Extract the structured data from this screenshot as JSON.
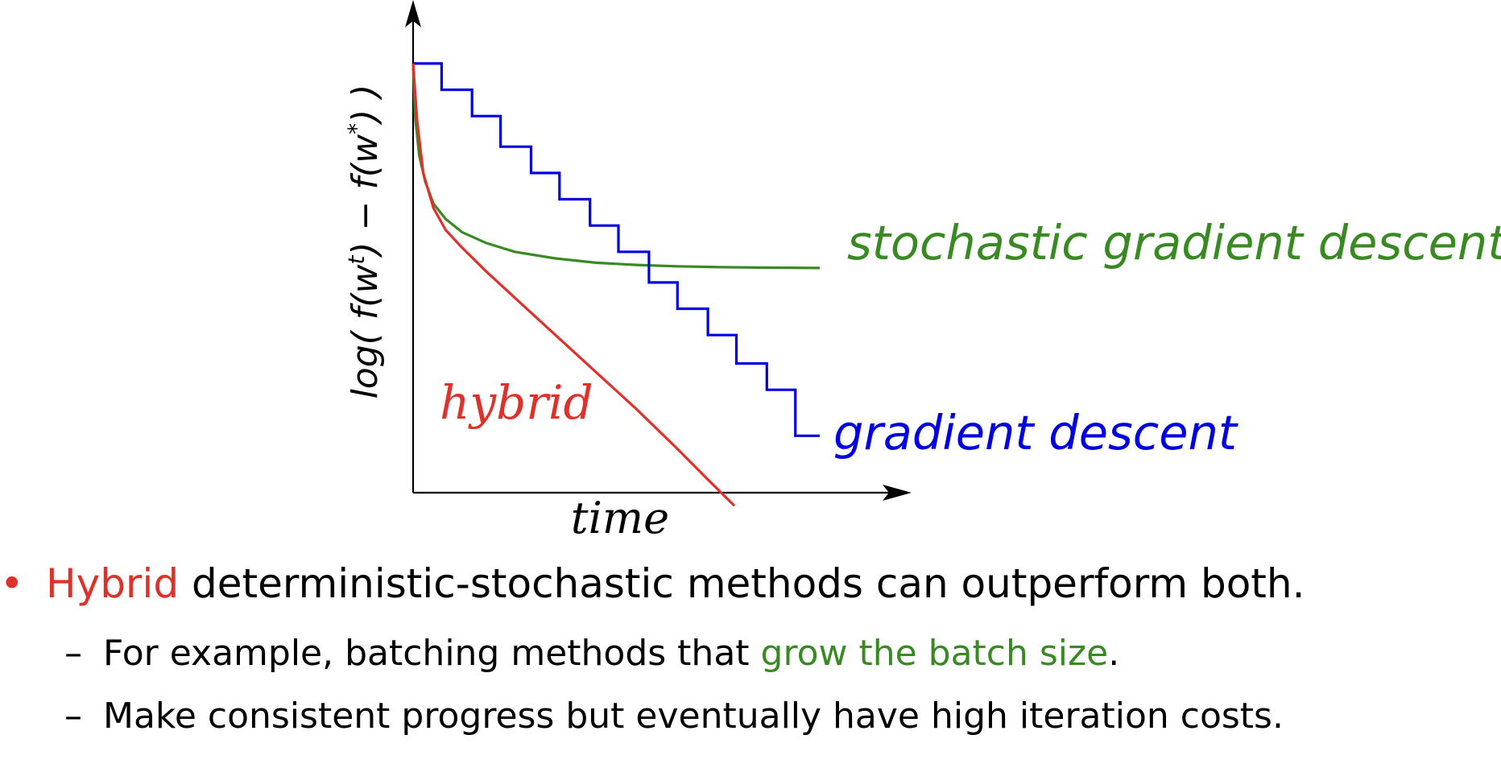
{
  "colors": {
    "sgd": "#3a8a24",
    "gd": "#0000e0",
    "hybrid": "#e0302a",
    "axis": "#000000"
  },
  "chart_data": {
    "type": "line",
    "title": "",
    "xlabel": "time",
    "ylabel_parts": {
      "pre": "log( f(w",
      "sup1": "t",
      "mid": ") − f(w",
      "sup2": "*",
      "post": ") )"
    },
    "xlim": [
      0,
      10
    ],
    "ylim": [
      0,
      10
    ],
    "grid": false,
    "series": [
      {
        "name": "stochastic gradient descent",
        "key": "sgd",
        "x": [
          0,
          0.05,
          0.15,
          0.3,
          0.5,
          0.8,
          1.2,
          1.8,
          2.5,
          3.5,
          4.5,
          5.5,
          6.5,
          7.5,
          8.5,
          10
        ],
        "y": [
          9.8,
          8.6,
          7.7,
          7.1,
          6.6,
          6.25,
          5.95,
          5.7,
          5.5,
          5.35,
          5.25,
          5.2,
          5.17,
          5.15,
          5.14,
          5.13
        ]
      },
      {
        "name": "gradient descent",
        "key": "gd",
        "style": "step",
        "x": [
          0,
          0.7,
          0.7,
          1.45,
          1.45,
          2.15,
          2.15,
          2.9,
          2.9,
          3.6,
          3.6,
          4.35,
          4.35,
          5.05,
          5.05,
          5.8,
          5.8,
          6.5,
          6.5,
          7.25,
          7.25,
          7.95,
          7.95,
          8.7,
          8.7,
          9.4,
          9.4,
          10
        ],
        "y": [
          9.8,
          9.8,
          9.2,
          9.2,
          8.6,
          8.6,
          7.9,
          7.9,
          7.3,
          7.3,
          6.7,
          6.7,
          6.1,
          6.1,
          5.5,
          5.5,
          4.8,
          4.8,
          4.2,
          4.2,
          3.6,
          3.6,
          2.95,
          2.95,
          2.35,
          2.35,
          1.3,
          1.3
        ]
      },
      {
        "name": "hybrid",
        "key": "hybrid",
        "x": [
          0,
          0.1,
          0.25,
          0.5,
          0.8,
          1.2,
          1.8,
          2.5,
          3.5,
          4.5,
          5.5,
          6.5,
          7.25,
          7.9
        ],
        "y": [
          9.8,
          8.5,
          7.3,
          6.5,
          6.0,
          5.6,
          5.05,
          4.45,
          3.6,
          2.75,
          1.9,
          1.0,
          0.3,
          -0.3
        ]
      }
    ],
    "annotations": [
      {
        "text": "stochastic gradient descent",
        "series": "sgd"
      },
      {
        "text": "gradient descent",
        "series": "gd"
      },
      {
        "text": "hybrid",
        "series": "hybrid"
      }
    ]
  },
  "bullets": {
    "main": {
      "dot": "•",
      "highlight": "Hybrid",
      "rest": " deterministic-stochastic methods can outperform both."
    },
    "sub": [
      {
        "dash": "–",
        "pre": "For example, batching methods that ",
        "highlight": "grow the batch size",
        "post": "."
      },
      {
        "dash": "–",
        "pre": "Make consistent progress but eventually have high iteration costs.",
        "highlight": "",
        "post": ""
      }
    ]
  }
}
